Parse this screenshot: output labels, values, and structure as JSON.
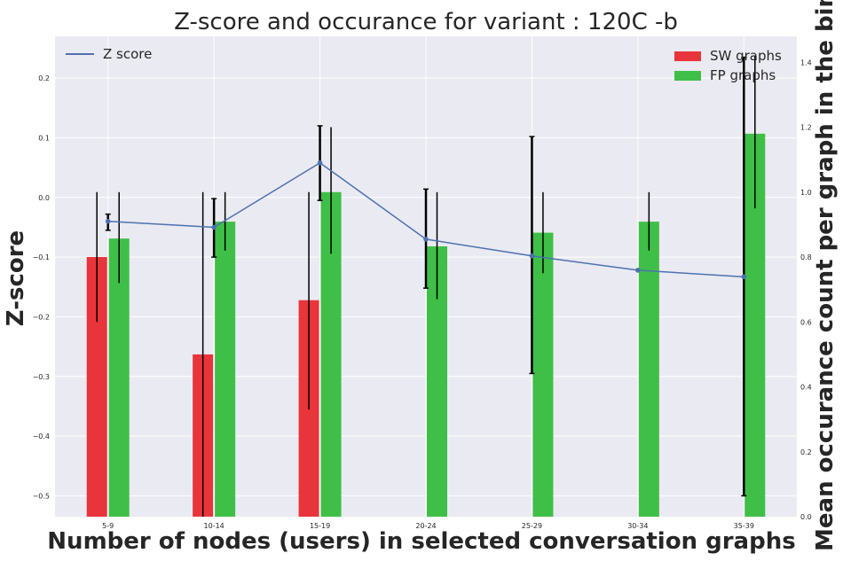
{
  "chart_data": {
    "type": "bar",
    "title": "Z-score and occurance for variant : 120C -b",
    "xlabel": "Number of nodes (users) in selected conversation graphs",
    "ylabel_left": "Z-score",
    "ylabel_right": "Mean occurance count per graph in the bin",
    "categories": [
      "5-9",
      "10-14",
      "15-19",
      "20-24",
      "25-29",
      "30-34",
      "35-39"
    ],
    "left_axis": {
      "ylim": [
        -0.535,
        0.27
      ],
      "ticks": [
        0.2,
        0.1,
        0.0,
        -0.1,
        -0.2,
        -0.3,
        -0.4,
        -0.5
      ],
      "tick_labels": [
        "0.2",
        "0.1",
        "0.0",
        "−0.1",
        "−0.2",
        "−0.3",
        "−0.4",
        "−0.5"
      ]
    },
    "right_axis": {
      "ylim": [
        0,
        1.48
      ],
      "ticks": [
        0.0,
        0.2,
        0.4,
        0.6,
        0.8,
        1.0,
        1.2,
        1.4
      ],
      "tick_labels": [
        "0.0",
        "0.2",
        "0.4",
        "0.6",
        "0.8",
        "1.0",
        "1.2",
        "1.4"
      ]
    },
    "zscore": {
      "name": "Z score",
      "color": "#4c72b0",
      "values": [
        -0.04,
        -0.05,
        0.058,
        -0.07,
        -0.098,
        -0.122,
        -0.133
      ],
      "err_low": [
        -0.055,
        -0.1,
        -0.005,
        -0.152,
        -0.295,
        null,
        -0.5
      ],
      "err_high": [
        -0.028,
        -0.002,
        0.12,
        0.014,
        0.102,
        null,
        0.235
      ]
    },
    "series": [
      {
        "name": "SW graphs",
        "color": "#e8353b",
        "values": [
          0.8,
          0.5,
          0.667,
          null,
          null,
          null,
          null
        ],
        "err_low": [
          0.6,
          0.0,
          0.33,
          null,
          null,
          null,
          null
        ],
        "err_high": [
          1.0,
          1.0,
          1.0,
          null,
          null,
          null,
          null
        ]
      },
      {
        "name": "FP graphs",
        "color": "#3fbf47",
        "values": [
          0.857,
          0.909,
          1.0,
          0.833,
          0.875,
          0.909,
          1.18
        ],
        "err_low": [
          0.72,
          0.82,
          0.81,
          0.67,
          0.75,
          0.82,
          0.95
        ],
        "err_high": [
          1.0,
          1.0,
          1.2,
          1.0,
          1.0,
          1.0,
          1.42
        ]
      }
    ],
    "grid": true,
    "legend_left_placement": "top-left",
    "legend_right_placement": "top-right",
    "background": "#eaeaf2"
  }
}
